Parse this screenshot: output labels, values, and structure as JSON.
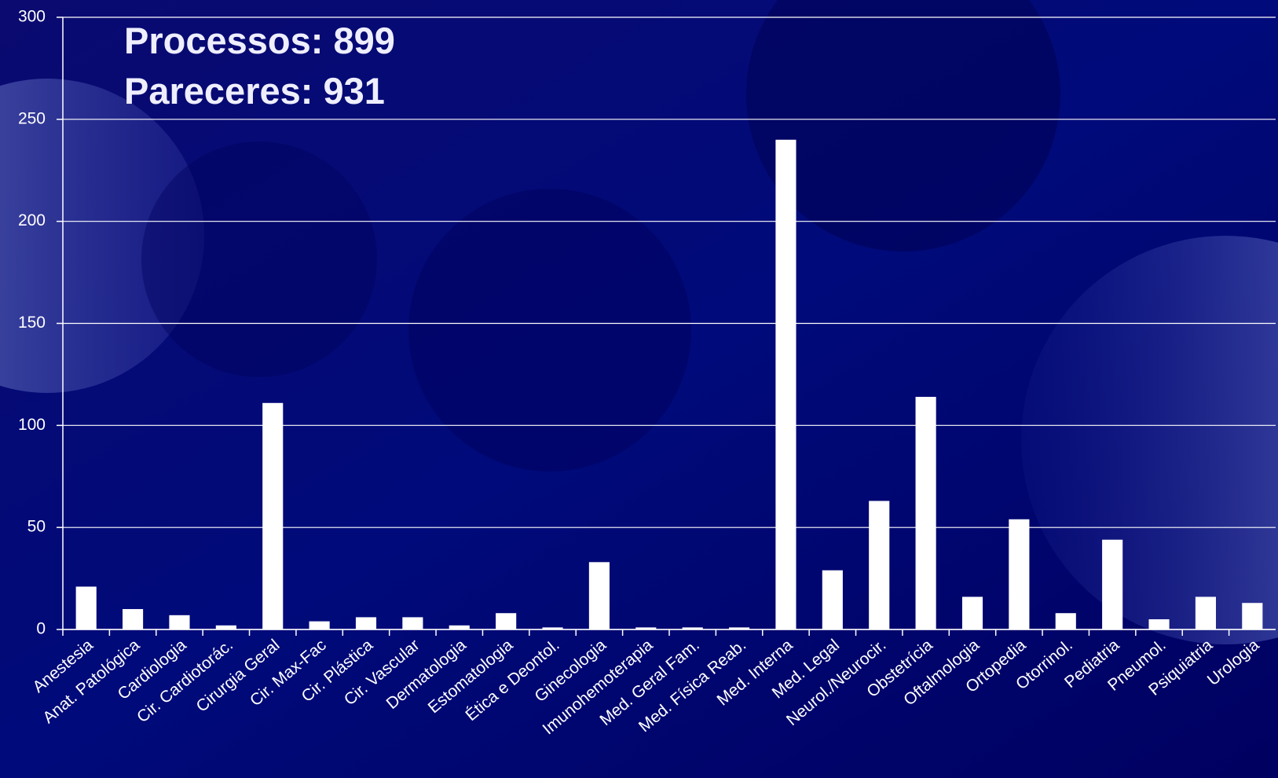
{
  "chart_data": {
    "type": "bar",
    "annotations": [
      "Processos: 899",
      "Pareceres: 931"
    ],
    "categories": [
      "Anestesia",
      "Anat. Patológica",
      "Cardiologia",
      "Cir. Cardiotorác.",
      "Cirurgia Geral",
      "Cir. Max-Fac",
      "Cir. Plástica",
      "Cir. Vascular",
      "Dermatologia",
      "Estomatologia",
      "Ética e Deontol.",
      "Ginecologia",
      "Imunohemoterapia",
      "Med. Geral Fam.",
      "Med. Física Reab.",
      "Med. Interna",
      "Med. Legal",
      "Neurol./Neurocir.",
      "Obstetrícia",
      "Oftalmologia",
      "Ortopedia",
      "Otorrinol.",
      "Pediatria",
      "Pneumol.",
      "Psiquiatria",
      "Urologia"
    ],
    "values": [
      21,
      10,
      7,
      2,
      111,
      4,
      6,
      6,
      2,
      8,
      1,
      33,
      1,
      1,
      1,
      240,
      29,
      63,
      114,
      16,
      54,
      8,
      44,
      5,
      16,
      13
    ],
    "color": "#ffffff",
    "ylim": [
      0,
      300
    ],
    "yticks": [
      0,
      50,
      100,
      150,
      200,
      250,
      300
    ],
    "grid": true
  }
}
